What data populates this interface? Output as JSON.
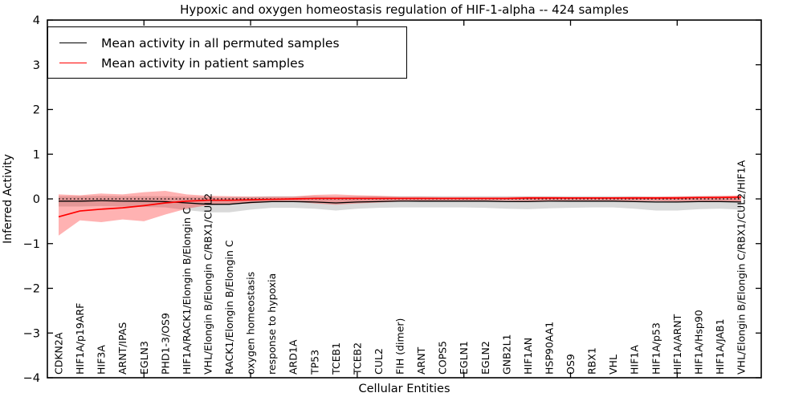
{
  "figure": {
    "title": "Hypoxic and oxygen homeostasis regulation of HIF-1-alpha -- 424 samples",
    "xlabel": "Cellular Entities",
    "ylabel": "Inferred Activity"
  },
  "legend": {
    "items": [
      {
        "label": "Mean activity in all permuted samples",
        "color": "#000000"
      },
      {
        "label": "Mean activity in patient samples",
        "color": "#ff0000"
      }
    ]
  },
  "chart_data": {
    "type": "line",
    "title": "Hypoxic and oxygen homeostasis regulation of HIF-1-alpha -- 424 samples",
    "xlabel": "Cellular Entities",
    "ylabel": "Inferred Activity",
    "ylim": [
      -4,
      4
    ],
    "yticks": [
      -4,
      -3,
      -2,
      -1,
      0,
      1,
      2,
      3,
      4
    ],
    "xtick_indices": [
      4,
      9,
      14,
      19,
      24,
      29
    ],
    "grid": false,
    "legend_position": "upper left",
    "zero_reference_line": {
      "y": 0,
      "style": "dotted",
      "color": "#000000"
    },
    "categories": [
      "CDKN2A",
      "HIF1A/p19ARF",
      "HIF3A",
      "ARNT/IPAS",
      "EGLN3",
      "PHD1-3/OS9",
      "HIF1A/RACK1/Elongin B/Elongin C",
      "VHL/Elongin B/Elongin C/RBX1/CUL2",
      "RACK1/Elongin B/Elongin C",
      "oxygen homeostasis",
      "response to hypoxia",
      "ARD1A",
      "TP53",
      "TCEB1",
      "TCEB2",
      "CUL2",
      "FIH (dimer)",
      "ARNT",
      "COPS5",
      "EGLN1",
      "EGLN2",
      "GNB2L1",
      "HIF1AN",
      "HSP90AA1",
      "OS9",
      "RBX1",
      "VHL",
      "HIF1A",
      "HIF1A/p53",
      "HIF1A/ARNT",
      "HIF1A/Hsp90",
      "HIF1A/JAB1",
      "VHL/Elongin B/Elongin C/RBX1/CUL2/HIF1A"
    ],
    "series": [
      {
        "name": "Mean activity in all permuted samples",
        "color": "#000000",
        "band_color": "#d9d9d9",
        "values": [
          -0.05,
          -0.05,
          -0.04,
          -0.05,
          -0.05,
          -0.06,
          -0.09,
          -0.12,
          -0.12,
          -0.08,
          -0.06,
          -0.06,
          -0.07,
          -0.09,
          -0.07,
          -0.06,
          -0.05,
          -0.05,
          -0.05,
          -0.05,
          -0.05,
          -0.06,
          -0.06,
          -0.05,
          -0.05,
          -0.05,
          -0.05,
          -0.06,
          -0.07,
          -0.07,
          -0.06,
          -0.06,
          -0.07
        ],
        "band_upper": [
          0.06,
          0.06,
          0.07,
          0.06,
          0.06,
          0.06,
          0.05,
          0.04,
          0.04,
          0.05,
          0.06,
          0.06,
          0.06,
          0.05,
          0.06,
          0.06,
          0.06,
          0.06,
          0.06,
          0.06,
          0.06,
          0.06,
          0.06,
          0.06,
          0.06,
          0.06,
          0.06,
          0.06,
          0.05,
          0.05,
          0.06,
          0.06,
          0.05
        ],
        "band_lower": [
          -0.17,
          -0.17,
          -0.16,
          -0.17,
          -0.18,
          -0.19,
          -0.25,
          -0.3,
          -0.3,
          -0.24,
          -0.2,
          -0.2,
          -0.22,
          -0.26,
          -0.22,
          -0.2,
          -0.19,
          -0.19,
          -0.19,
          -0.19,
          -0.2,
          -0.22,
          -0.23,
          -0.21,
          -0.2,
          -0.19,
          -0.19,
          -0.22,
          -0.26,
          -0.26,
          -0.23,
          -0.22,
          -0.24
        ]
      },
      {
        "name": "Mean activity in patient samples",
        "color": "#ff0000",
        "band_color": "rgba(255,0,0,0.30)",
        "values": [
          -0.4,
          -0.27,
          -0.23,
          -0.2,
          -0.15,
          -0.09,
          -0.05,
          -0.03,
          -0.03,
          -0.02,
          -0.01,
          0.0,
          0.01,
          0.01,
          0.01,
          0.01,
          0.01,
          0.01,
          0.01,
          0.01,
          0.01,
          0.01,
          0.02,
          0.02,
          0.02,
          0.02,
          0.02,
          0.02,
          0.02,
          0.02,
          0.03,
          0.03,
          0.04
        ],
        "band_upper": [
          0.1,
          0.08,
          0.12,
          0.1,
          0.15,
          0.18,
          0.1,
          0.07,
          0.06,
          0.05,
          0.05,
          0.05,
          0.09,
          0.1,
          0.08,
          0.07,
          0.05,
          0.05,
          0.04,
          0.04,
          0.04,
          0.04,
          0.05,
          0.05,
          0.04,
          0.04,
          0.04,
          0.05,
          0.05,
          0.06,
          0.06,
          0.07,
          0.08
        ],
        "band_lower": [
          -0.82,
          -0.48,
          -0.52,
          -0.46,
          -0.5,
          -0.35,
          -0.22,
          -0.14,
          -0.12,
          -0.1,
          -0.07,
          -0.06,
          -0.1,
          -0.13,
          -0.1,
          -0.08,
          -0.06,
          -0.05,
          -0.04,
          -0.04,
          -0.04,
          -0.04,
          -0.05,
          -0.05,
          -0.04,
          -0.04,
          -0.04,
          -0.05,
          -0.05,
          -0.06,
          -0.05,
          -0.06,
          -0.07
        ]
      }
    ]
  }
}
